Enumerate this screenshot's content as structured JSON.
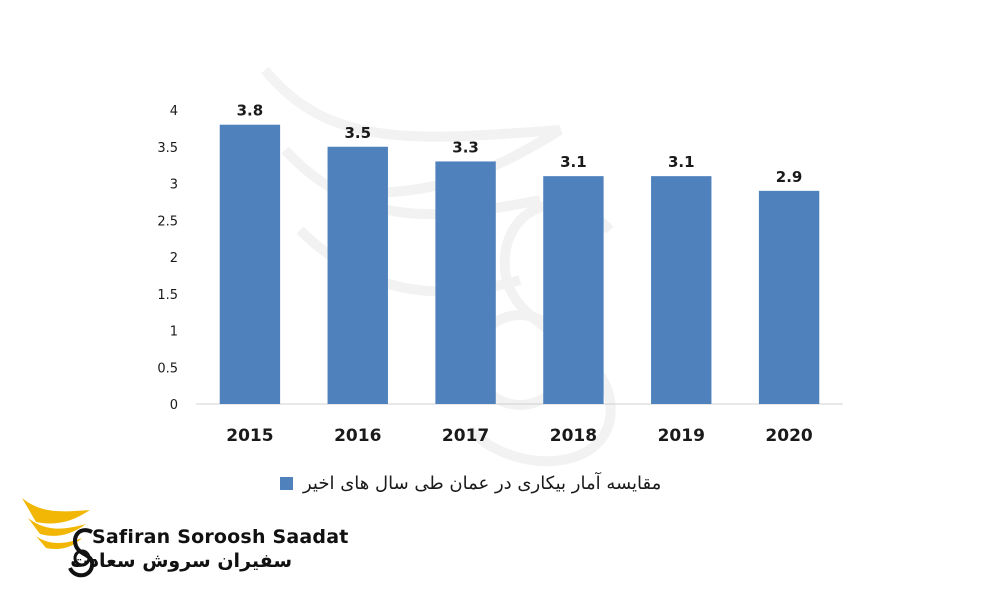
{
  "chart_data": {
    "type": "bar",
    "categories": [
      "2015",
      "2016",
      "2017",
      "2018",
      "2019",
      "2020"
    ],
    "values": [
      3.8,
      3.5,
      3.3,
      3.1,
      3.1,
      2.9
    ],
    "value_labels": [
      "3.8",
      "3.5",
      "3.3",
      "3.1",
      "3.1",
      "2.9"
    ],
    "y_ticks": [
      "0",
      "0.5",
      "1",
      "1.5",
      "2",
      "2.5",
      "3",
      "3.5",
      "4"
    ],
    "ylim": [
      0,
      4
    ],
    "grid": false,
    "legend": {
      "position": "bottom",
      "label": "مقایسه آمار بیکاری در عمان طی سال های اخیر"
    },
    "bar_color": "#4f81bd"
  },
  "watermark": {
    "brand_en": "Safiran Soroosh Saadat",
    "brand_fa": "سفیران سروش سعادت",
    "accent_color": "#f2b705"
  }
}
